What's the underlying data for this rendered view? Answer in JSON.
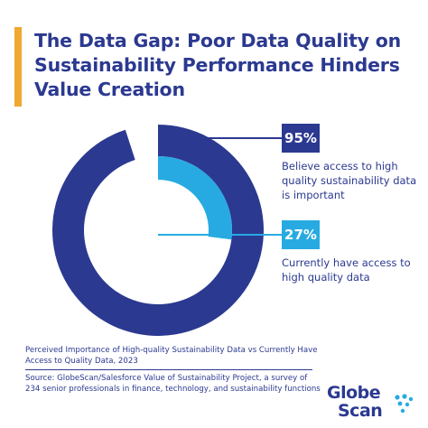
{
  "header": {
    "title": "The Data Gap: Poor Data Quality on Sustainability Performance Hinders Value Creation",
    "accent_color": "#f0a830"
  },
  "chart_data": {
    "type": "donut",
    "series": [
      {
        "value": 95,
        "unit": "%",
        "label": "95%",
        "description": "Believe access to high quality sustainability data is important",
        "color": "#2b3990"
      },
      {
        "value": 27,
        "unit": "%",
        "label": "27%",
        "description": "Currently have access to high quality data",
        "color": "#27aae1"
      }
    ]
  },
  "caption": "Perceived Importance of High-quality Sustainability Data vs Currently Have Access to Quality Data, 2023",
  "source": "Source: GlobeScan/Salesforce Value of Sustainability Project, a survey of 234 senior professionals in finance, technology, and sustainability functions",
  "logo": {
    "line1": "Globe",
    "line2": "Scan",
    "color": "#2b3990",
    "dot_color": "#27aae1"
  }
}
